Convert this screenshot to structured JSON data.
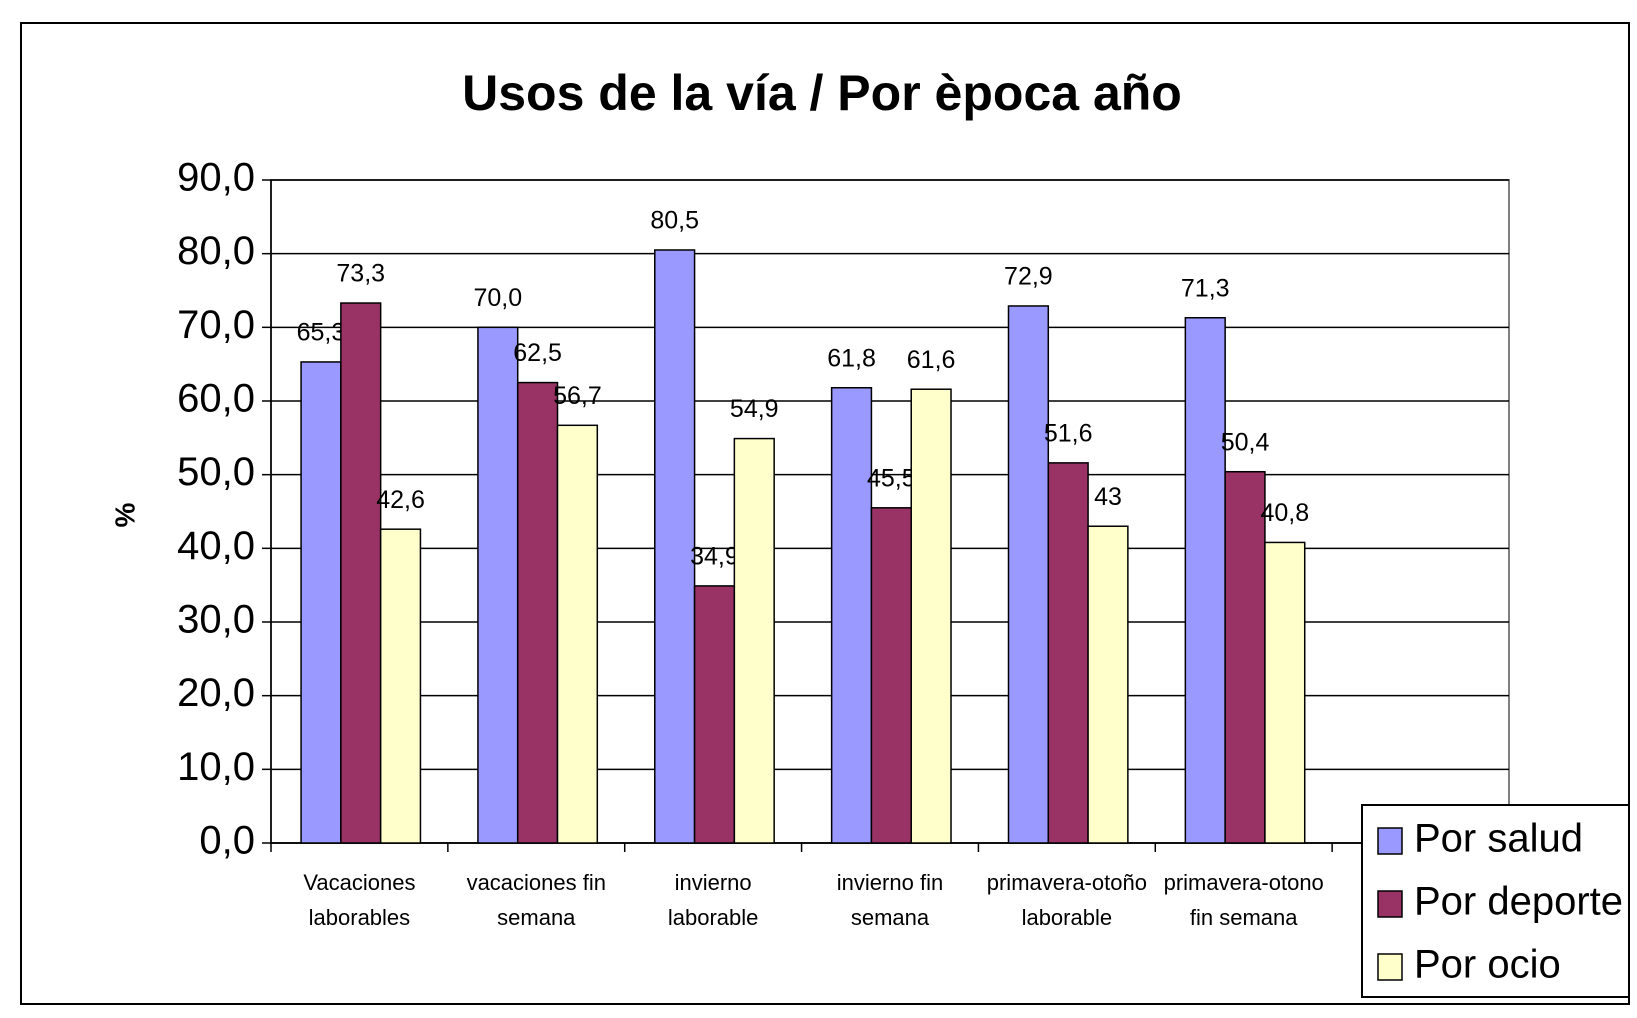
{
  "chart_data": {
    "type": "bar",
    "title": "Usos de la vía / Por època año",
    "y_label": "%",
    "categories": [
      "Vacaciones laborables",
      "vacaciones fin semana",
      "invierno laborable",
      "invierno fin semana",
      "primavera-otoño laborable",
      "primavera-otono fin semana",
      null
    ],
    "series": [
      {
        "name": "Por salud",
        "color": "#9999ff",
        "values": [
          65.3,
          70.0,
          80.5,
          61.8,
          72.9,
          71.3,
          null
        ],
        "value_labels": [
          "65,3",
          "70,0",
          "80,5",
          "61,8",
          "72,9",
          "71,3",
          null
        ]
      },
      {
        "name": "Por deporte",
        "color": "#993366",
        "values": [
          73.3,
          62.5,
          34.9,
          45.5,
          51.6,
          50.4,
          null
        ],
        "value_labels": [
          "73,3",
          "62,5",
          "34,9",
          "45,5",
          "51,6",
          "50,4",
          null
        ]
      },
      {
        "name": "Por ocio",
        "color": "#ffffcc",
        "values": [
          42.6,
          56.7,
          54.9,
          61.6,
          43,
          40.8,
          null
        ],
        "value_labels": [
          "42,6",
          "56,7",
          "54,9",
          "61,6",
          "43",
          "40,8",
          null
        ]
      }
    ],
    "ylim": [
      0,
      90
    ],
    "yticks": [
      {
        "value": 0,
        "label": "0,0"
      },
      {
        "value": 10,
        "label": "10,0"
      },
      {
        "value": 20,
        "label": "20,0"
      },
      {
        "value": 30,
        "label": "30,0"
      },
      {
        "value": 40,
        "label": "40,0"
      },
      {
        "value": 50,
        "label": "50,0"
      },
      {
        "value": 60,
        "label": "60,0"
      },
      {
        "value": 70,
        "label": "70,0"
      },
      {
        "value": 80,
        "label": "80,0"
      },
      {
        "value": 90,
        "label": "90,0"
      }
    ],
    "grid": true,
    "legend": "bottom-right"
  }
}
